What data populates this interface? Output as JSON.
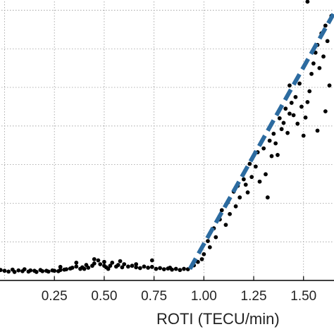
{
  "chart_data": {
    "type": "scatter",
    "xlabel": "ROTI (TECU/min)",
    "ylabel": "",
    "xlim": [
      -0.03,
      1.66
    ],
    "ylim": [
      0.0,
      7.3
    ],
    "x_ticks": [
      0.25,
      0.5,
      0.75,
      1.0,
      1.25,
      1.5
    ],
    "x_tick_labels": [
      "0.25",
      "0.50",
      "0.75",
      "1.00",
      "1.25",
      "1.50"
    ],
    "y_gridlines": [
      1,
      2,
      3,
      4,
      5,
      6,
      7
    ],
    "grid": true,
    "series": [
      {
        "kind": "scatter",
        "color": "#000000",
        "points": [
          [
            -0.02,
            0.27
          ],
          [
            0.0,
            0.25
          ],
          [
            0.02,
            0.23
          ],
          [
            0.04,
            0.28
          ],
          [
            0.05,
            0.22
          ],
          [
            0.07,
            0.26
          ],
          [
            0.09,
            0.24
          ],
          [
            0.1,
            0.29
          ],
          [
            0.12,
            0.23
          ],
          [
            0.13,
            0.26
          ],
          [
            0.15,
            0.25
          ],
          [
            0.16,
            0.22
          ],
          [
            0.18,
            0.27
          ],
          [
            0.19,
            0.24
          ],
          [
            0.21,
            0.25
          ],
          [
            0.22,
            0.23
          ],
          [
            0.24,
            0.26
          ],
          [
            0.25,
            0.25
          ],
          [
            0.27,
            0.24
          ],
          [
            0.28,
            0.27
          ],
          [
            0.3,
            0.28
          ],
          [
            0.31,
            0.29
          ],
          [
            0.33,
            0.31
          ],
          [
            0.34,
            0.33
          ],
          [
            0.36,
            0.36
          ],
          [
            0.38,
            0.3
          ],
          [
            0.39,
            0.34
          ],
          [
            0.41,
            0.4
          ],
          [
            0.42,
            0.33
          ],
          [
            0.44,
            0.38
          ],
          [
            0.45,
            0.44
          ],
          [
            0.47,
            0.52
          ],
          [
            0.48,
            0.42
          ],
          [
            0.5,
            0.38
          ],
          [
            0.51,
            0.34
          ],
          [
            0.53,
            0.38
          ],
          [
            0.54,
            0.46
          ],
          [
            0.56,
            0.36
          ],
          [
            0.57,
            0.4
          ],
          [
            0.59,
            0.34
          ],
          [
            0.6,
            0.42
          ],
          [
            0.62,
            0.36
          ],
          [
            0.64,
            0.38
          ],
          [
            0.66,
            0.34
          ],
          [
            0.68,
            0.32
          ],
          [
            0.7,
            0.36
          ],
          [
            0.72,
            0.33
          ],
          [
            0.74,
            0.35
          ],
          [
            0.76,
            0.3
          ],
          [
            0.78,
            0.32
          ],
          [
            0.8,
            0.29
          ],
          [
            0.82,
            0.31
          ],
          [
            0.84,
            0.28
          ],
          [
            0.86,
            0.3
          ],
          [
            0.88,
            0.27
          ],
          [
            0.9,
            0.3
          ],
          [
            0.92,
            0.29
          ],
          [
            0.36,
            0.46
          ],
          [
            0.45,
            0.55
          ],
          [
            0.58,
            0.5
          ],
          [
            0.74,
            0.52
          ],
          [
            0.28,
            0.35
          ],
          [
            0.83,
            0.33
          ],
          [
            0.52,
            0.3
          ],
          [
            0.4,
            0.3
          ],
          [
            0.66,
            0.42
          ],
          [
            0.5,
            0.48
          ],
          [
            0.95,
            0.39
          ],
          [
            0.97,
            0.48
          ],
          [
            0.99,
            0.55
          ],
          [
            1.0,
            0.68
          ],
          [
            1.02,
            1.02
          ],
          [
            1.03,
            0.86
          ],
          [
            1.05,
            1.35
          ],
          [
            1.06,
            1.12
          ],
          [
            1.08,
            1.58
          ],
          [
            1.09,
            1.82
          ],
          [
            1.11,
            1.44
          ],
          [
            1.12,
            2.02
          ],
          [
            1.13,
            1.72
          ],
          [
            1.15,
            2.3
          ],
          [
            1.16,
            1.92
          ],
          [
            1.17,
            2.45
          ],
          [
            1.18,
            2.15
          ],
          [
            1.2,
            2.62
          ],
          [
            1.21,
            2.48
          ],
          [
            1.22,
            2.28
          ],
          [
            1.23,
            3.02
          ],
          [
            1.24,
            2.68
          ],
          [
            1.26,
            2.95
          ],
          [
            1.27,
            3.32
          ],
          [
            1.28,
            2.56
          ],
          [
            1.3,
            3.42
          ],
          [
            1.31,
            2.75
          ],
          [
            1.32,
            2.15
          ],
          [
            1.33,
            3.62
          ],
          [
            1.34,
            3.22
          ],
          [
            1.35,
            3.8
          ],
          [
            1.36,
            3.55
          ],
          [
            1.37,
            3.25
          ],
          [
            1.38,
            4.2
          ],
          [
            1.39,
            3.92
          ],
          [
            1.4,
            4.08
          ],
          [
            1.41,
            4.45
          ],
          [
            1.42,
            3.82
          ],
          [
            1.43,
            4.32
          ],
          [
            1.44,
            4.6
          ],
          [
            1.45,
            4.28
          ],
          [
            1.46,
            4.75
          ],
          [
            1.47,
            4.06
          ],
          [
            1.48,
            5.1
          ],
          [
            1.49,
            4.5
          ],
          [
            1.5,
            3.75
          ],
          [
            1.51,
            4.22
          ],
          [
            1.52,
            4.62
          ],
          [
            1.53,
            4.9
          ],
          [
            1.54,
            5.35
          ],
          [
            1.55,
            5.62
          ],
          [
            1.56,
            5.9
          ],
          [
            1.57,
            6.1
          ],
          [
            1.58,
            5.5
          ],
          [
            1.59,
            6.4
          ],
          [
            1.6,
            5.8
          ],
          [
            1.61,
            6.6
          ],
          [
            1.62,
            6.2
          ],
          [
            1.63,
            5.05
          ],
          [
            1.64,
            6.85
          ],
          [
            1.52,
            7.22
          ],
          [
            1.57,
            3.88
          ],
          [
            1.61,
            4.38
          ],
          [
            1.43,
            5.05
          ]
        ]
      },
      {
        "kind": "trend",
        "style": "dashed",
        "color": "#2c6ba0",
        "points": [
          [
            0.93,
            0.3
          ],
          [
            1.65,
            6.9
          ]
        ]
      }
    ]
  }
}
